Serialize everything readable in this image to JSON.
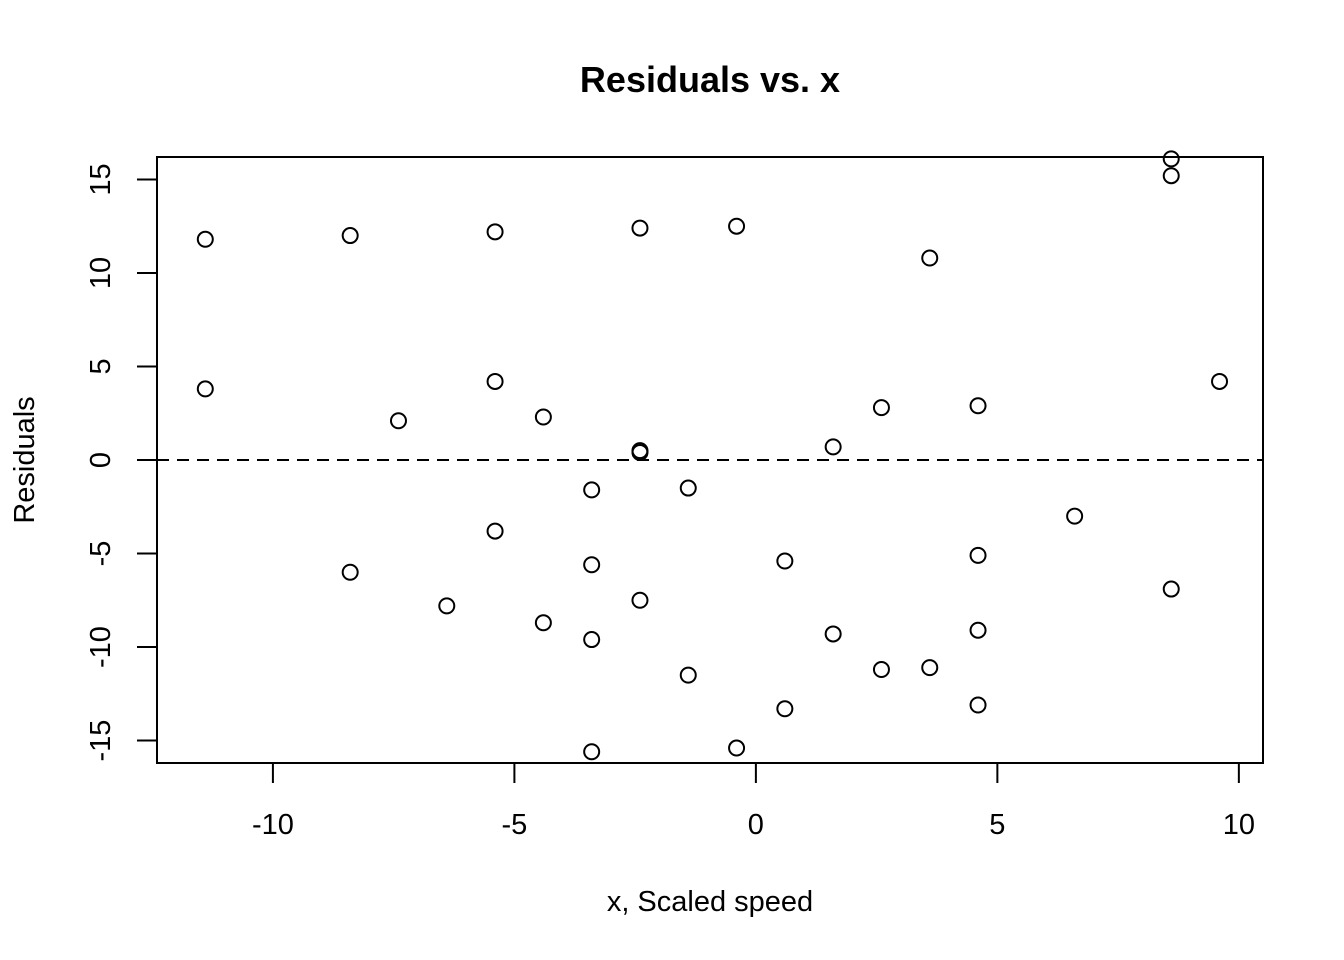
{
  "chart_data": {
    "type": "scatter",
    "title": "Residuals vs. x",
    "xlabel": "x, Scaled speed",
    "ylabel": "Residuals",
    "xlim": [
      -12.4,
      10.5
    ],
    "ylim": [
      -16.2,
      16.2
    ],
    "x_ticks": [
      -10,
      -5,
      0,
      5,
      10
    ],
    "x_tick_labels": [
      "-10",
      "-5",
      "0",
      "5",
      "10"
    ],
    "y_ticks": [
      -15,
      -10,
      -5,
      0,
      5,
      10,
      15
    ],
    "y_tick_labels": [
      "-15",
      "-10",
      "-5",
      "0",
      "5",
      "10",
      "15"
    ],
    "reference_line": {
      "y": 0,
      "style": "dashed"
    },
    "points": [
      [
        -11.4,
        11.8
      ],
      [
        -11.4,
        3.8
      ],
      [
        -8.4,
        12.0
      ],
      [
        -8.4,
        -6.0
      ],
      [
        -7.4,
        2.1
      ],
      [
        -6.4,
        -7.8
      ],
      [
        -5.4,
        12.2
      ],
      [
        -5.4,
        4.2
      ],
      [
        -5.4,
        -3.8
      ],
      [
        -4.4,
        2.3
      ],
      [
        -4.4,
        -8.7
      ],
      [
        -3.4,
        -1.6
      ],
      [
        -3.4,
        -5.6
      ],
      [
        -3.4,
        -9.6
      ],
      [
        -3.4,
        -15.6
      ],
      [
        -2.4,
        12.4
      ],
      [
        -2.4,
        0.5
      ],
      [
        -2.4,
        0.4
      ],
      [
        -2.4,
        -7.5
      ],
      [
        -1.4,
        -1.5
      ],
      [
        -1.4,
        -11.5
      ],
      [
        -0.4,
        12.5
      ],
      [
        -0.4,
        -15.4
      ],
      [
        0.6,
        -5.4
      ],
      [
        0.6,
        -13.3
      ],
      [
        1.6,
        0.7
      ],
      [
        1.6,
        -9.3
      ],
      [
        2.6,
        2.8
      ],
      [
        2.6,
        -11.2
      ],
      [
        3.6,
        10.8
      ],
      [
        3.6,
        -11.1
      ],
      [
        4.6,
        2.9
      ],
      [
        4.6,
        -5.1
      ],
      [
        4.6,
        -9.1
      ],
      [
        4.6,
        -13.1
      ],
      [
        6.6,
        -3.0
      ],
      [
        8.6,
        16.1
      ],
      [
        8.6,
        15.2
      ],
      [
        8.6,
        -6.9
      ],
      [
        9.6,
        4.2
      ]
    ]
  }
}
